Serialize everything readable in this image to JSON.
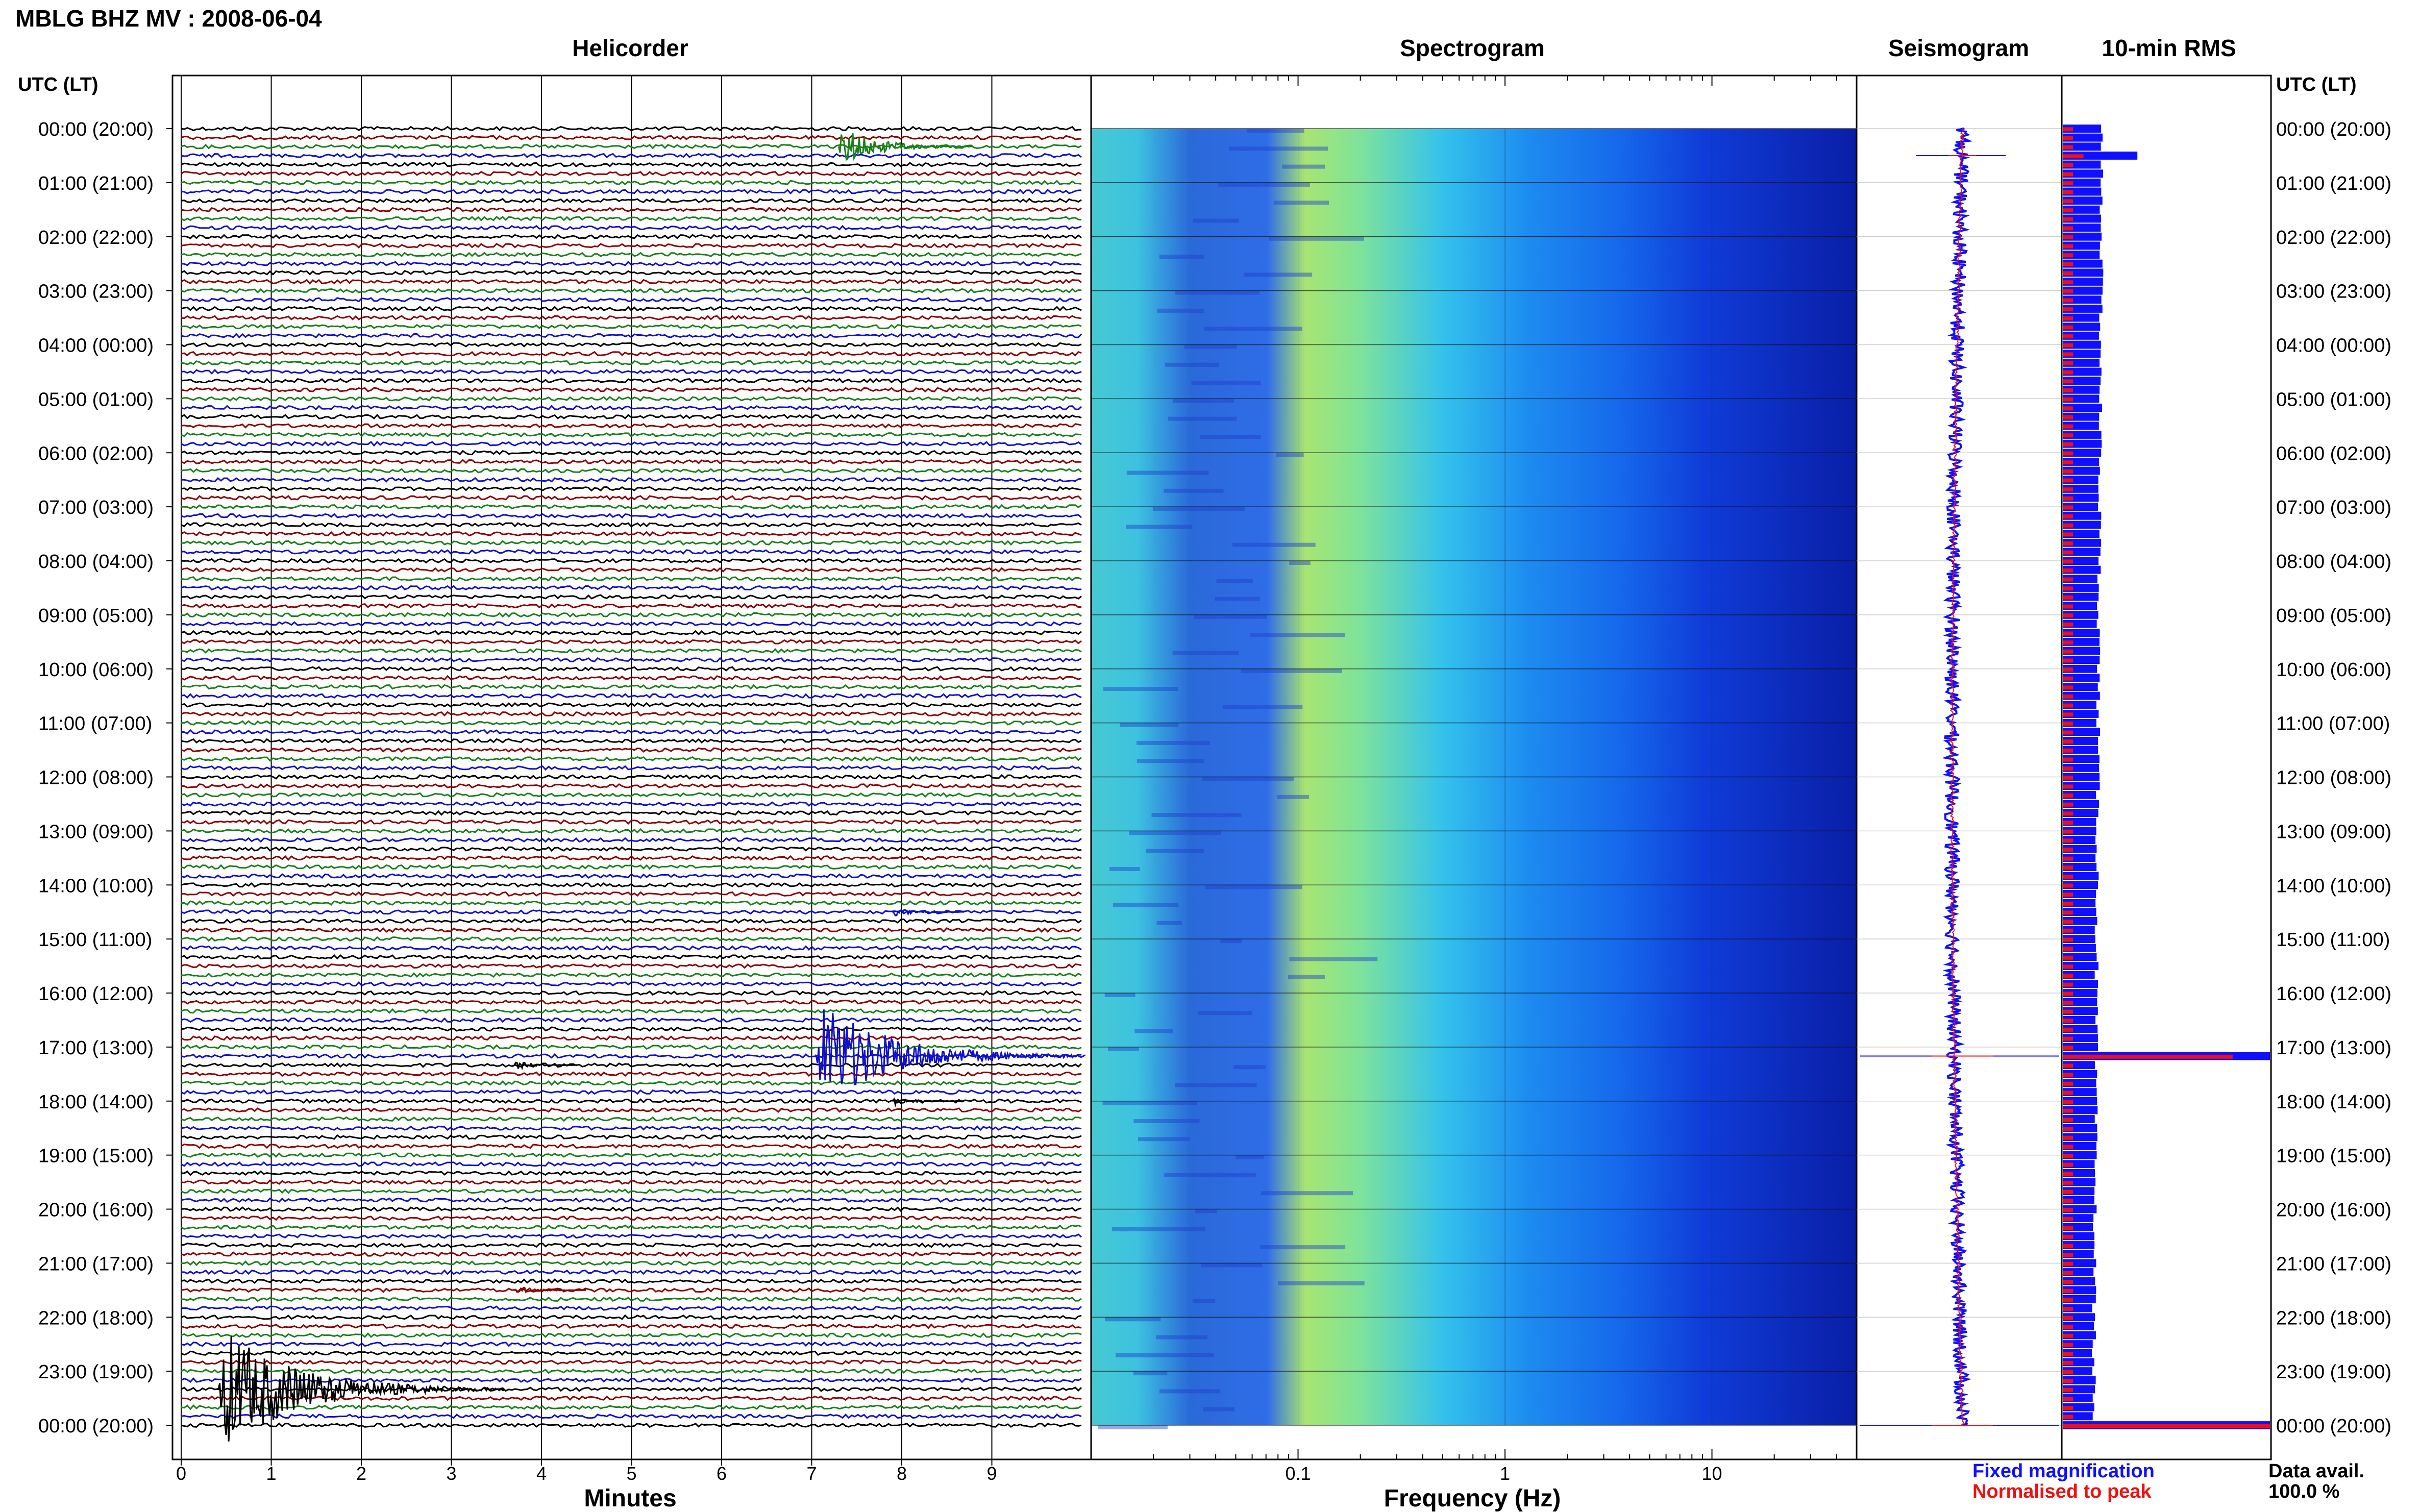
{
  "page": {
    "title": "MBLG BHZ MV : 2008-06-04"
  },
  "panels": {
    "helicorder": "Helicorder",
    "spectrogram": "Spectrogram",
    "seismogram": "Seismogram",
    "rms": "10-min RMS"
  },
  "axis": {
    "time_header_left": "UTC (LT)",
    "time_header_right": "UTC (LT)",
    "minutes_label": "Minutes",
    "frequency_label": "Frequency (Hz)"
  },
  "legend": {
    "fixed": "Fixed magnification",
    "fixed_color": "#1010ff",
    "normalised": "Normalised to peak",
    "normalised_color": "#ee1111"
  },
  "data_availability": {
    "label": "Data avail.",
    "value": "100.0 %"
  },
  "colors": {
    "trace_cycle": [
      "#000000",
      "#8b0000",
      "#1a7f1a",
      "#1010c8"
    ],
    "rms_fixed": "#1010ff",
    "rms_normalised": "#ee1111"
  },
  "chart_data": [
    {
      "type": "line",
      "title": "Helicorder",
      "xlabel": "Minutes",
      "x_ticks": [
        "0",
        "1",
        "2",
        "3",
        "4",
        "5",
        "6",
        "7",
        "8",
        "9"
      ],
      "xlim": [
        0,
        10
      ],
      "time_labels": [
        "00:00 (20:00)",
        "01:00 (21:00)",
        "02:00 (22:00)",
        "03:00 (23:00)",
        "04:00 (00:00)",
        "05:00 (01:00)",
        "06:00 (02:00)",
        "07:00 (03:00)",
        "08:00 (04:00)",
        "09:00 (05:00)",
        "10:00 (06:00)",
        "11:00 (07:00)",
        "12:00 (08:00)",
        "13:00 (09:00)",
        "14:00 (10:00)",
        "15:00 (11:00)",
        "16:00 (12:00)",
        "17:00 (13:00)",
        "18:00 (14:00)",
        "19:00 (15:00)",
        "20:00 (16:00)",
        "21:00 (17:00)",
        "22:00 (18:00)",
        "23:00 (19:00)",
        "00:00 (20:00)"
      ],
      "rows_per_hour": 6,
      "total_rows": 145,
      "events": [
        {
          "row": 2,
          "minute": 7.3,
          "amplitude": 2.4,
          "duration": 1.5
        },
        {
          "row": 103,
          "minute": 7.05,
          "amplitude": 6.5,
          "duration": 3.0
        },
        {
          "row": 140,
          "minute": 0.4,
          "amplitude": 7.5,
          "duration": 3.2
        },
        {
          "row": 87,
          "minute": 7.9,
          "amplitude": 0.5,
          "duration": 0.8
        },
        {
          "row": 108,
          "minute": 7.9,
          "amplitude": 0.5,
          "duration": 0.8
        },
        {
          "row": 104,
          "minute": 3.7,
          "amplitude": 0.5,
          "duration": 0.7
        },
        {
          "row": 129,
          "minute": 3.7,
          "amplitude": 0.5,
          "duration": 0.8
        }
      ]
    },
    {
      "type": "heatmap",
      "title": "Spectrogram",
      "xlabel": "Frequency (Hz)",
      "x_ticks": [
        "0.1",
        "1",
        "10"
      ],
      "x_scale": "log",
      "xlim": [
        0.01,
        50
      ]
    },
    {
      "type": "line",
      "title": "Seismogram"
    },
    {
      "type": "bar",
      "title": "10-min RMS",
      "series": [
        {
          "name": "Fixed magnification"
        },
        {
          "name": "Normalised to peak"
        }
      ],
      "fixed_peaks": [
        {
          "row": 3,
          "value": 0.36
        },
        {
          "row": 103,
          "value": 1.0
        },
        {
          "row": 144,
          "value": 1.0
        }
      ],
      "normalised_peaks": [
        {
          "row": 3,
          "value": 0.1
        },
        {
          "row": 103,
          "value": 0.82
        },
        {
          "row": 144,
          "value": 1.0
        }
      ]
    }
  ]
}
